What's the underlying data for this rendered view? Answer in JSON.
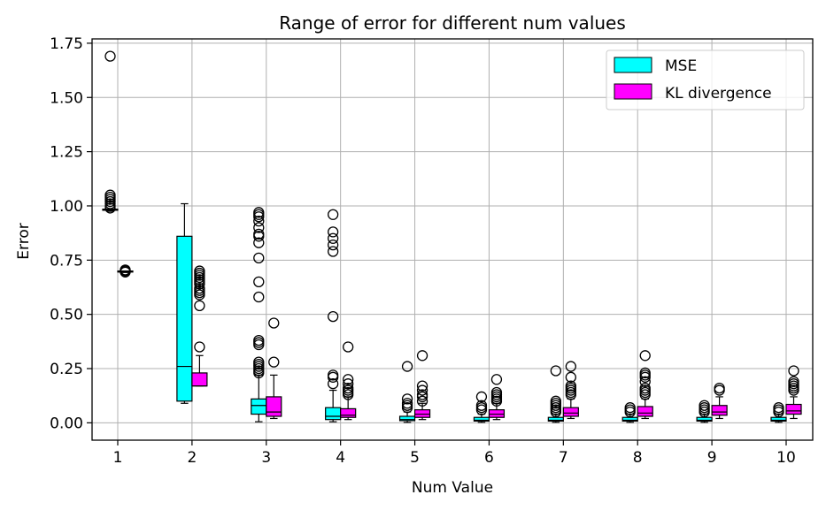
{
  "chart_data": {
    "type": "box",
    "title": "Range of error for different num values",
    "xlabel": "Num Value",
    "ylabel": "Error",
    "categories": [
      "1",
      "2",
      "3",
      "4",
      "5",
      "6",
      "7",
      "8",
      "9",
      "10"
    ],
    "ylim": [
      -0.08,
      1.77
    ],
    "yticks": [
      "0.00",
      "0.25",
      "0.50",
      "0.75",
      "1.00",
      "1.25",
      "1.50",
      "1.75"
    ],
    "grid": true,
    "legend_position": "top-right",
    "series": [
      {
        "name": "MSE",
        "color": "#00ffff",
        "boxes": [
          {
            "q1": 0.98,
            "median": 0.98,
            "q3": 0.985,
            "whislo": 0.975,
            "whishi": 0.985,
            "fliers": [
              1.69,
              1.05,
              1.04,
              1.03,
              1.02,
              1.01,
              1.0,
              0.99
            ]
          },
          {
            "q1": 0.1,
            "median": 0.26,
            "q3": 0.86,
            "whislo": 0.09,
            "whishi": 1.01,
            "fliers": []
          },
          {
            "q1": 0.04,
            "median": 0.08,
            "q3": 0.11,
            "whislo": 0.005,
            "whishi": 0.22,
            "fliers": [
              0.97,
              0.96,
              0.95,
              0.93,
              0.9,
              0.87,
              0.86,
              0.83,
              0.76,
              0.65,
              0.58,
              0.38,
              0.37,
              0.36,
              0.28,
              0.27,
              0.26,
              0.25,
              0.24,
              0.23
            ]
          },
          {
            "q1": 0.015,
            "median": 0.03,
            "q3": 0.07,
            "whislo": 0.005,
            "whishi": 0.15,
            "fliers": [
              0.96,
              0.88,
              0.85,
              0.82,
              0.79,
              0.49,
              0.22,
              0.21,
              0.18
            ]
          },
          {
            "q1": 0.01,
            "median": 0.015,
            "q3": 0.03,
            "whislo": 0.002,
            "whishi": 0.05,
            "fliers": [
              0.26,
              0.11,
              0.09,
              0.08,
              0.07
            ]
          },
          {
            "q1": 0.008,
            "median": 0.012,
            "q3": 0.025,
            "whislo": 0.002,
            "whishi": 0.04,
            "fliers": [
              0.12,
              0.08,
              0.07,
              0.06
            ]
          },
          {
            "q1": 0.008,
            "median": 0.012,
            "q3": 0.025,
            "whislo": 0.002,
            "whishi": 0.04,
            "fliers": [
              0.24,
              0.1,
              0.09,
              0.08,
              0.07,
              0.06,
              0.05
            ]
          },
          {
            "q1": 0.008,
            "median": 0.012,
            "q3": 0.025,
            "whislo": 0.002,
            "whishi": 0.04,
            "fliers": [
              0.07,
              0.06,
              0.05
            ]
          },
          {
            "q1": 0.008,
            "median": 0.012,
            "q3": 0.025,
            "whislo": 0.002,
            "whishi": 0.04,
            "fliers": [
              0.08,
              0.07,
              0.06,
              0.05
            ]
          },
          {
            "q1": 0.008,
            "median": 0.012,
            "q3": 0.025,
            "whislo": 0.002,
            "whishi": 0.04,
            "fliers": [
              0.07,
              0.06,
              0.05
            ]
          }
        ]
      },
      {
        "name": "KL divergence",
        "color": "#ff00ff",
        "boxes": [
          {
            "q1": 0.695,
            "median": 0.697,
            "q3": 0.7,
            "whislo": 0.693,
            "whishi": 0.7,
            "fliers": [
              0.705,
              0.7,
              0.695
            ]
          },
          {
            "q1": 0.17,
            "median": 0.17,
            "q3": 0.23,
            "whislo": 0.17,
            "whishi": 0.31,
            "fliers": [
              0.7,
              0.69,
              0.68,
              0.67,
              0.66,
              0.65,
              0.64,
              0.62,
              0.61,
              0.6,
              0.59,
              0.54,
              0.35
            ]
          },
          {
            "q1": 0.03,
            "median": 0.05,
            "q3": 0.12,
            "whislo": 0.02,
            "whishi": 0.22,
            "fliers": [
              0.46,
              0.28
            ]
          },
          {
            "q1": 0.025,
            "median": 0.035,
            "q3": 0.065,
            "whislo": 0.015,
            "whishi": 0.12,
            "fliers": [
              0.35,
              0.2,
              0.18,
              0.16,
              0.15,
              0.14,
              0.13
            ]
          },
          {
            "q1": 0.025,
            "median": 0.04,
            "q3": 0.06,
            "whislo": 0.015,
            "whishi": 0.09,
            "fliers": [
              0.31,
              0.17,
              0.15,
              0.13,
              0.12,
              0.1
            ]
          },
          {
            "q1": 0.025,
            "median": 0.04,
            "q3": 0.06,
            "whislo": 0.015,
            "whishi": 0.09,
            "fliers": [
              0.2,
              0.14,
              0.13,
              0.12,
              0.11,
              0.1
            ]
          },
          {
            "q1": 0.03,
            "median": 0.045,
            "q3": 0.07,
            "whislo": 0.02,
            "whishi": 0.11,
            "fliers": [
              0.26,
              0.21,
              0.17,
              0.16,
              0.15,
              0.14,
              0.13
            ]
          },
          {
            "q1": 0.03,
            "median": 0.045,
            "q3": 0.075,
            "whislo": 0.02,
            "whishi": 0.11,
            "fliers": [
              0.31,
              0.23,
              0.22,
              0.21,
              0.19,
              0.16,
              0.15,
              0.14,
              0.13
            ]
          },
          {
            "q1": 0.035,
            "median": 0.05,
            "q3": 0.08,
            "whislo": 0.02,
            "whishi": 0.12,
            "fliers": [
              0.16,
              0.15
            ]
          },
          {
            "q1": 0.04,
            "median": 0.055,
            "q3": 0.085,
            "whislo": 0.02,
            "whishi": 0.12,
            "fliers": [
              0.24,
              0.19,
              0.18,
              0.17,
              0.16,
              0.15
            ]
          }
        ]
      }
    ]
  }
}
